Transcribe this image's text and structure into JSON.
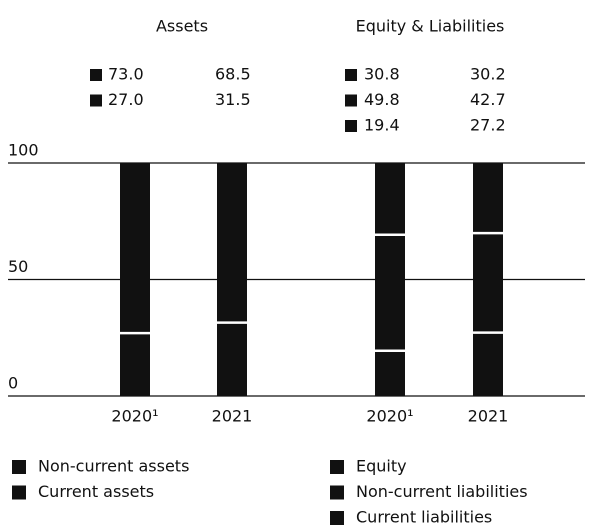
{
  "chart_data": [
    {
      "type": "bar",
      "stacked": true,
      "title": "Assets",
      "categories": [
        "2020¹",
        "2021"
      ],
      "series": [
        {
          "name": "Non-current assets",
          "color": "#111111",
          "values": [
            73.0,
            68.5
          ],
          "value_labels": [
            "73.0",
            "68.5"
          ]
        },
        {
          "name": "Current assets",
          "color": "#111111",
          "values": [
            27.0,
            31.5
          ],
          "value_labels": [
            "27.0",
            "31.5"
          ]
        }
      ],
      "ylim": [
        0,
        100
      ],
      "yticks": [
        0,
        50,
        100
      ],
      "grid": true
    },
    {
      "type": "bar",
      "stacked": true,
      "title": "Equity & Liabilities",
      "categories": [
        "2020¹",
        "2021"
      ],
      "series": [
        {
          "name": "Equity",
          "color": "#111111",
          "values": [
            30.8,
            30.2
          ],
          "value_labels": [
            "30.8",
            "30.2"
          ]
        },
        {
          "name": "Non-current liabilities",
          "color": "#111111",
          "values": [
            49.8,
            42.7
          ],
          "value_labels": [
            "49.8",
            "42.7"
          ]
        },
        {
          "name": "Current liabilities",
          "color": "#111111",
          "values": [
            19.4,
            27.2
          ],
          "value_labels": [
            "19.4",
            "27.2"
          ]
        }
      ],
      "ylim": [
        0,
        100
      ],
      "yticks": [
        0,
        50,
        100
      ],
      "grid": true
    }
  ]
}
